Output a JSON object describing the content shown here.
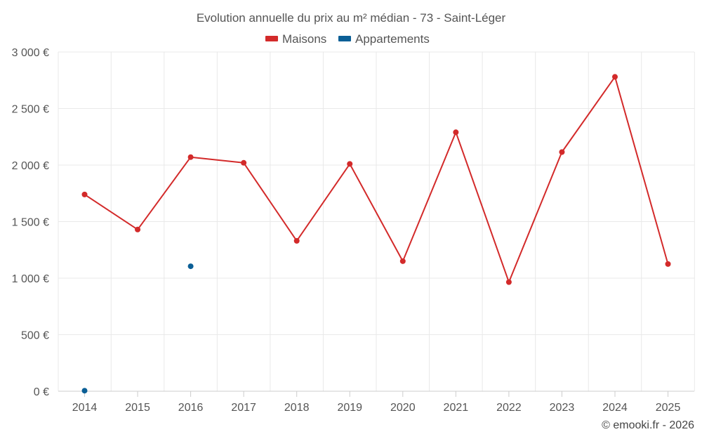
{
  "chart_data": {
    "type": "line",
    "title": "Evolution annuelle du prix au m² médian - 73 - Saint-Léger",
    "categories": [
      "2014",
      "2015",
      "2016",
      "2017",
      "2018",
      "2019",
      "2020",
      "2021",
      "2022",
      "2023",
      "2024",
      "2025"
    ],
    "y_tick_values": [
      0,
      500,
      1000,
      1500,
      2000,
      2500,
      3000
    ],
    "y_tick_labels": [
      "0 €",
      "500 €",
      "1 000 €",
      "1 500 €",
      "2 000 €",
      "2 500 €",
      "3 000 €"
    ],
    "ylim": [
      0,
      3000
    ],
    "legend_position": "top-center",
    "grid": true,
    "series": [
      {
        "name": "Maisons",
        "color": "#d32a2a",
        "line": true,
        "values": [
          1740,
          1430,
          2070,
          2020,
          1330,
          2010,
          1150,
          2290,
          965,
          2115,
          2780,
          1125
        ]
      },
      {
        "name": "Appartements",
        "color": "#0b5f96",
        "line": false,
        "values": [
          5,
          null,
          1105,
          null,
          null,
          null,
          null,
          null,
          null,
          null,
          null,
          null
        ]
      }
    ],
    "credit": "© emooki.fr - 2026"
  }
}
